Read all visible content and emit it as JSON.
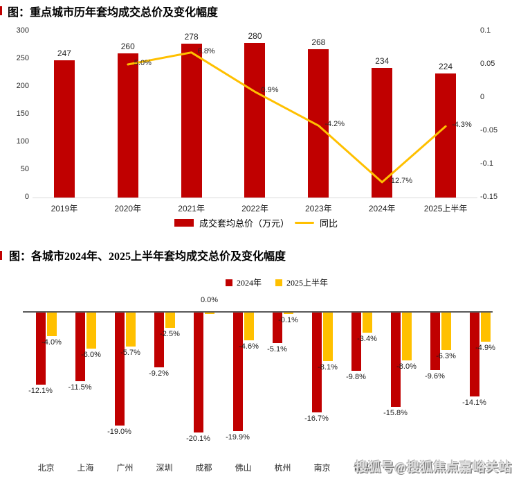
{
  "watermark": {
    "text": "搜狐号@搜狐焦点嘉峪关站"
  },
  "colors": {
    "bar_red": "#c00000",
    "line_gold": "#ffc000",
    "baseline_gray": "#d9d9d9",
    "zero_line_gray": "#595959"
  },
  "chart_data": [
    {
      "type": "bar",
      "subtype": "bar-with-line-overlay",
      "title": "图：重点城市历年套均成交总价及变化幅度",
      "categories": [
        "2019年",
        "2020年",
        "2021年",
        "2022年",
        "2023年",
        "2024年",
        "2025上半年"
      ],
      "bar_series": {
        "name": "成交套均总价（万元）",
        "color": "#c00000",
        "values": [
          247,
          260,
          278,
          280,
          268,
          234,
          224
        ]
      },
      "line_series": {
        "name": "同比",
        "color": "#ffc000",
        "values": [
          null,
          0.05,
          0.068,
          0.009,
          -0.042,
          -0.127,
          -0.043
        ],
        "labels": [
          "",
          "5.0%",
          "6.8%",
          "0.9%",
          "-4.2%",
          "-12.7%",
          "-4.3%"
        ]
      },
      "left_axis": {
        "min": 0,
        "max": 300,
        "ticks": [
          "300",
          "250",
          "200",
          "150",
          "100",
          "50",
          "0"
        ]
      },
      "right_axis": {
        "min": -0.15,
        "max": 0.1,
        "ticks": [
          "0.1",
          "0.05",
          "0",
          "-0.05",
          "-0.1",
          "-0.15"
        ]
      },
      "grid": "off",
      "legend_position": "bottom-center"
    },
    {
      "type": "bar",
      "subtype": "grouped-negative-bars",
      "title": "图：各城市2024年、2025上半年套均成交总价及变化幅度",
      "categories": [
        "北京",
        "上海",
        "广州",
        "深圳",
        "成都",
        "佛山",
        "杭州",
        "南京",
        "青岛",
        "",
        "",
        ""
      ],
      "series": [
        {
          "name": "2024年",
          "color": "#c00000",
          "values": [
            -12.1,
            -11.5,
            -19.0,
            -9.2,
            -20.1,
            -19.9,
            -5.1,
            -16.7,
            -9.8,
            -15.8,
            -9.6,
            -14.1
          ],
          "labels": [
            "-12.1%",
            "-11.5%",
            "-19.0%",
            "-9.2%",
            "-20.1%",
            "-19.9%",
            "-5.1%",
            "-16.7%",
            "-9.8%",
            "-15.8%",
            "-9.6%",
            "-14.1%"
          ]
        },
        {
          "name": "2025上半年",
          "color": "#ffc000",
          "values": [
            -4.0,
            -6.0,
            -5.7,
            -2.5,
            0.0,
            -4.6,
            -0.1,
            -8.1,
            -3.4,
            -8.0,
            -6.3,
            -4.9
          ],
          "labels": [
            "-4.0%",
            "-6.0%",
            "-5.7%",
            "-2.5%",
            "0.0%",
            "-4.6%",
            "-0.1%",
            "-8.1%",
            "-3.4%",
            "-8.0%",
            "-6.3%",
            "-4.9%"
          ]
        }
      ],
      "grid": "off",
      "legend_position": "top-right"
    }
  ]
}
